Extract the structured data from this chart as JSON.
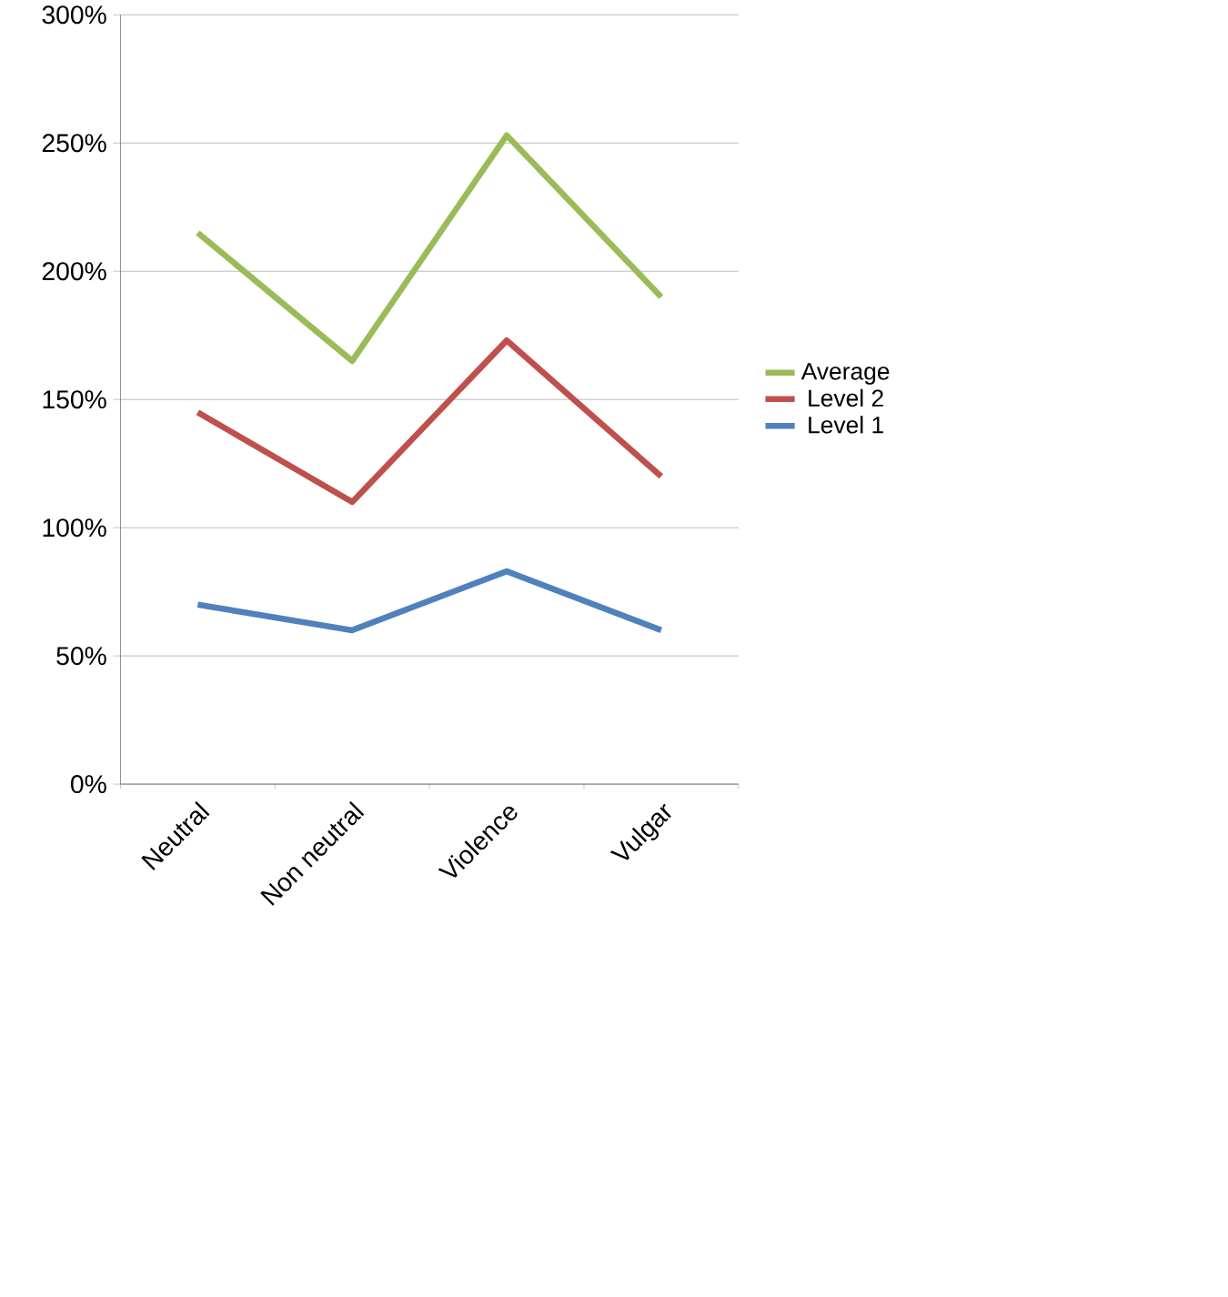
{
  "chart_data": {
    "type": "line",
    "categories": [
      "Neutral",
      "Non neutral",
      "Violence",
      "Vulgar"
    ],
    "series": [
      {
        "name": "Level 1",
        "color": "#4f81bd",
        "values": [
          70,
          60,
          83,
          60
        ]
      },
      {
        "name": "Level 2",
        "color": "#c0504d",
        "values": [
          145,
          110,
          173,
          120
        ]
      },
      {
        "name": "Average",
        "color": "#9bbb59",
        "values": [
          215,
          165,
          253,
          190
        ]
      }
    ],
    "ylim": [
      0,
      300
    ],
    "yticks": [
      {
        "value": 0,
        "label": "0%"
      },
      {
        "value": 50,
        "label": "50%"
      },
      {
        "value": 100,
        "label": "100%"
      },
      {
        "value": 150,
        "label": "150%"
      },
      {
        "value": 200,
        "label": "200%"
      },
      {
        "value": 250,
        "label": "250%"
      },
      {
        "value": 300,
        "label": "300%"
      }
    ],
    "grid": "y",
    "legend": "right",
    "marker": "none",
    "line_style": "solid"
  }
}
